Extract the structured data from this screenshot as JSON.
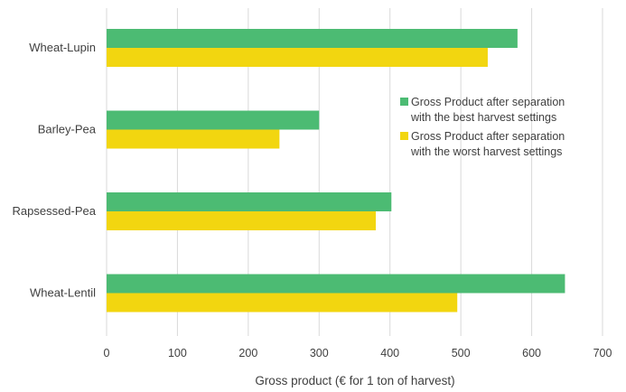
{
  "chart_data": {
    "type": "bar",
    "orientation": "horizontal",
    "categories": [
      "Wheat-Lupin",
      "Barley-Pea",
      "Rapsessed-Pea",
      "Wheat-Lentil"
    ],
    "series": [
      {
        "name": "Gross Product after separation with the best harvest settings",
        "legend_lines": [
          "Gross Product after separation",
          "with the best harvest settings"
        ],
        "color": "#4cbb73",
        "values": [
          580,
          300,
          402,
          647
        ]
      },
      {
        "name": "Gross Product after separation with the worst harvest settings",
        "legend_lines": [
          "Gross Product after separation",
          "with the worst harvest settings"
        ],
        "color": "#f2d610",
        "values": [
          538,
          244,
          380,
          495
        ]
      }
    ],
    "xlabel": "Gross product (€ for 1 ton of harvest)",
    "xlim": [
      0,
      700
    ],
    "xticks": [
      "0",
      "100",
      "200",
      "300",
      "400",
      "500",
      "600",
      "700"
    ],
    "grid": "vertical",
    "legend_position": "right-center",
    "gridline_color": "#d9d9d9"
  }
}
